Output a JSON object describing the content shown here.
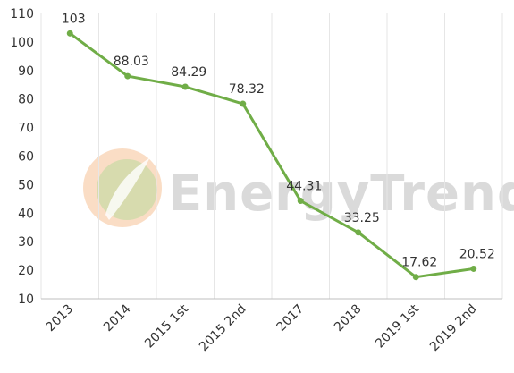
{
  "watermark": {
    "text": "EnergyTrend"
  },
  "chart_data": {
    "type": "line",
    "categories": [
      "2013",
      "2014",
      "2015 1st",
      "2015 2nd",
      "2017",
      "2018",
      "2019 1st",
      "2019 2nd"
    ],
    "series": [
      {
        "values": [
          103,
          88.03,
          84.29,
          78.32,
          44.31,
          33.25,
          17.62,
          20.52
        ],
        "color": "#70ad47"
      }
    ],
    "data_labels": [
      "103",
      "88.03",
      "84.29",
      "78.32",
      "44.31",
      "33.25",
      "17.62",
      "20.52"
    ],
    "y_ticks": [
      "10",
      "20",
      "30",
      "40",
      "50",
      "60",
      "70",
      "80",
      "90",
      "100",
      "110"
    ],
    "ylim": [
      10,
      110
    ],
    "title": "",
    "xlabel": "",
    "ylabel": "",
    "grid": "vertical",
    "legend": "none"
  }
}
